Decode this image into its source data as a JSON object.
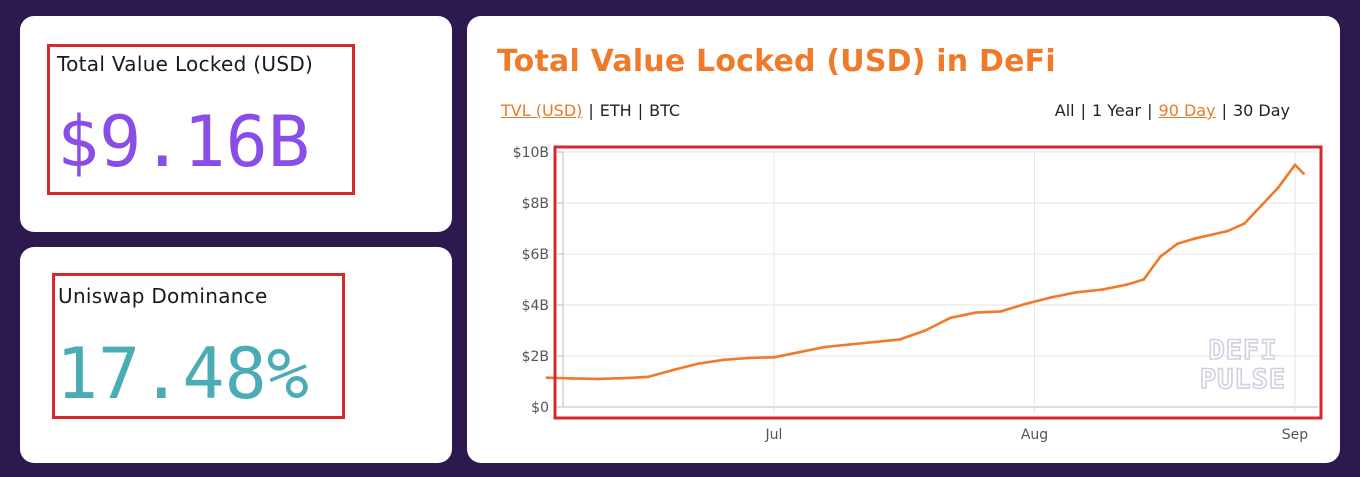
{
  "tvl_card": {
    "label": "Total Value Locked (USD)",
    "value": "$9.16B",
    "value_color": "#8a4ee8"
  },
  "uniswap_card": {
    "label": "Uniswap Dominance",
    "value": "17.48%",
    "value_color": "#4aacb4"
  },
  "chart_card": {
    "title": "Total Value Locked (USD) in DeFi",
    "title_color": "#ef7a2a",
    "currency_tabs": [
      {
        "label": "TVL (USD)",
        "active": true
      },
      {
        "label": "ETH",
        "active": false
      },
      {
        "label": "BTC",
        "active": false
      }
    ],
    "range_tabs": [
      {
        "label": "All",
        "active": false
      },
      {
        "label": "1 Year",
        "active": false
      },
      {
        "label": "90 Day",
        "active": true
      },
      {
        "label": "30 Day",
        "active": false
      }
    ],
    "watermark": [
      "DEFI",
      "PULSE"
    ]
  },
  "chart_data": {
    "type": "line",
    "title": "",
    "xlabel": "",
    "ylabel": "",
    "x_ticks": [
      "Jul",
      "Aug",
      "Sep"
    ],
    "y_ticks": [
      "$0",
      "$2B",
      "$4B",
      "$6B",
      "$8B",
      "$10B"
    ],
    "ylim": [
      0,
      10
    ],
    "y_unit": "billion USD",
    "grid": true,
    "line_color": "#ef7a2a",
    "series": [
      {
        "name": "",
        "x": [
          "2020-06-04",
          "2020-06-07",
          "2020-06-10",
          "2020-06-13",
          "2020-06-16",
          "2020-06-19",
          "2020-06-22",
          "2020-06-25",
          "2020-06-28",
          "2020-07-01",
          "2020-07-04",
          "2020-07-07",
          "2020-07-10",
          "2020-07-13",
          "2020-07-16",
          "2020-07-19",
          "2020-07-22",
          "2020-07-25",
          "2020-07-28",
          "2020-07-31",
          "2020-08-03",
          "2020-08-06",
          "2020-08-09",
          "2020-08-12",
          "2020-08-14",
          "2020-08-16",
          "2020-08-18",
          "2020-08-20",
          "2020-08-22",
          "2020-08-24",
          "2020-08-26",
          "2020-08-28",
          "2020-08-30",
          "2020-09-01",
          "2020-09-02"
        ],
        "values": [
          1.15,
          1.12,
          1.1,
          1.13,
          1.18,
          1.45,
          1.7,
          1.85,
          1.92,
          1.95,
          2.15,
          2.35,
          2.45,
          2.55,
          2.65,
          3.0,
          3.5,
          3.7,
          3.75,
          4.05,
          4.3,
          4.5,
          4.6,
          4.8,
          5.0,
          5.9,
          6.4,
          6.6,
          6.75,
          6.9,
          7.2,
          7.9,
          8.6,
          9.5,
          9.16
        ]
      }
    ]
  }
}
